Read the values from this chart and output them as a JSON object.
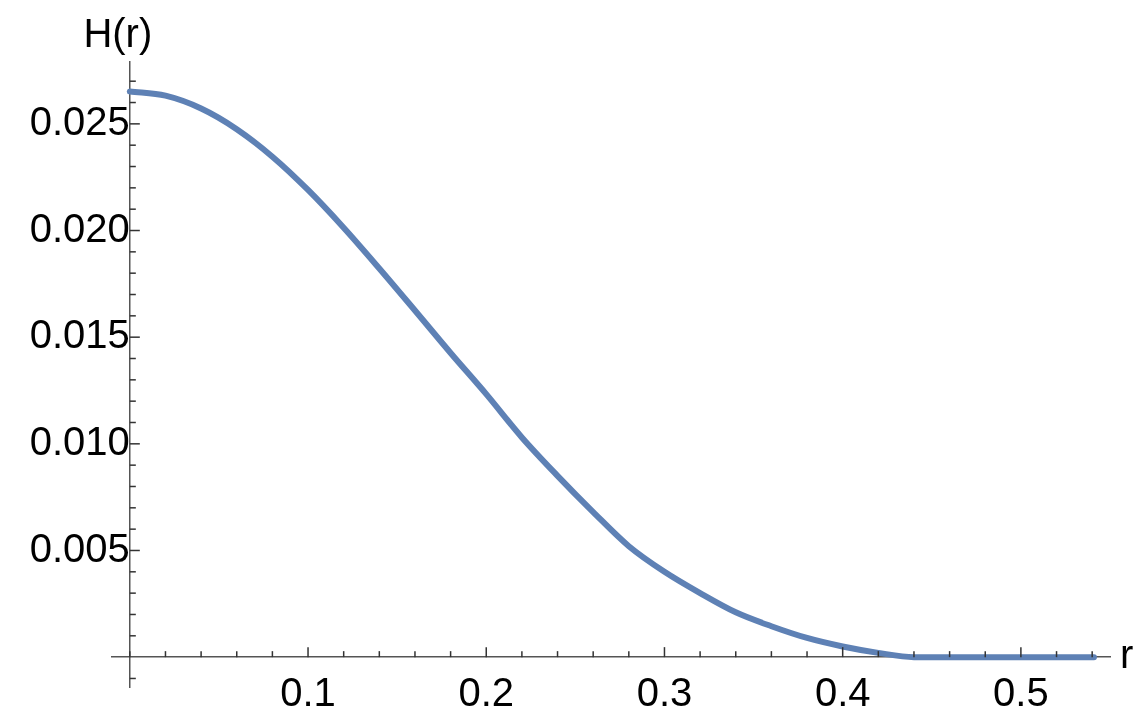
{
  "chart_data": {
    "type": "line",
    "xlabel": "r",
    "ylabel": "H(r)",
    "grid": false,
    "legend": false,
    "marker": "none",
    "line_style": "solid",
    "xlim": [
      -0.01,
      0.55
    ],
    "ylim": [
      -0.0014,
      0.0279
    ],
    "xticks": [
      {
        "value": 0,
        "label": null
      },
      {
        "value": 0.02,
        "label": null
      },
      {
        "value": 0.04,
        "label": null
      },
      {
        "value": 0.06,
        "label": null
      },
      {
        "value": 0.08,
        "label": null
      },
      0.1,
      {
        "value": 0.12,
        "label": null
      },
      {
        "value": 0.14,
        "label": null
      },
      {
        "value": 0.16,
        "label": null
      },
      {
        "value": 0.18,
        "label": null
      },
      0.2,
      {
        "value": 0.22,
        "label": null
      },
      {
        "value": 0.24,
        "label": null
      },
      {
        "value": 0.26,
        "label": null
      },
      {
        "value": 0.28,
        "label": null
      },
      0.3,
      {
        "value": 0.32,
        "label": null
      },
      {
        "value": 0.34,
        "label": null
      },
      {
        "value": 0.36,
        "label": null
      },
      {
        "value": 0.38,
        "label": null
      },
      0.4,
      {
        "value": 0.42,
        "label": null
      },
      {
        "value": 0.44,
        "label": null
      },
      {
        "value": 0.46,
        "label": null
      },
      {
        "value": 0.48,
        "label": null
      },
      0.5,
      {
        "value": 0.52,
        "label": null
      },
      {
        "value": 0.54,
        "label": null
      }
    ],
    "yticks": [
      {
        "value": -0.001,
        "label": null
      },
      {
        "value": 0.001,
        "label": null
      },
      {
        "value": 0.002,
        "label": null
      },
      {
        "value": 0.003,
        "label": null
      },
      {
        "value": 0.004,
        "label": null
      },
      0.005,
      {
        "value": 0.006,
        "label": null
      },
      {
        "value": 0.007,
        "label": null
      },
      {
        "value": 0.008,
        "label": null
      },
      {
        "value": 0.009,
        "label": null
      },
      {
        "value": 0.01,
        "label": "0.010"
      },
      {
        "value": 0.011,
        "label": null
      },
      {
        "value": 0.012,
        "label": null
      },
      {
        "value": 0.013,
        "label": null
      },
      {
        "value": 0.014,
        "label": null
      },
      0.015,
      {
        "value": 0.016,
        "label": null
      },
      {
        "value": 0.017,
        "label": null
      },
      {
        "value": 0.018,
        "label": null
      },
      {
        "value": 0.019,
        "label": null
      },
      {
        "value": 0.02,
        "label": "0.020"
      },
      {
        "value": 0.021,
        "label": null
      },
      {
        "value": 0.022,
        "label": null
      },
      {
        "value": 0.023,
        "label": null
      },
      {
        "value": 0.024,
        "label": null
      },
      0.025,
      {
        "value": 0.026,
        "label": null
      },
      {
        "value": 0.027,
        "label": null
      }
    ],
    "x": [
      0,
      0.02,
      0.04,
      0.06,
      0.08,
      0.1,
      0.12,
      0.14,
      0.16,
      0.18,
      0.2,
      0.22,
      0.24,
      0.26,
      0.28,
      0.3,
      0.32,
      0.34,
      0.36,
      0.38,
      0.4,
      0.42,
      0.44,
      0.46,
      0.48,
      0.5,
      0.52,
      0.541
    ],
    "series": [
      {
        "color": "#5e81b5",
        "values": [
          0.02652,
          0.02632,
          0.02572,
          0.02475,
          0.02346,
          0.0219,
          0.02013,
          0.01822,
          0.01625,
          0.01426,
          0.01233,
          0.0103,
          0.0085,
          0.0068,
          0.0052,
          0.004,
          0.003,
          0.0021,
          0.00145,
          0.0009,
          0.0005,
          0.0002,
          0,
          0,
          0,
          0,
          0,
          0
        ]
      }
    ]
  }
}
